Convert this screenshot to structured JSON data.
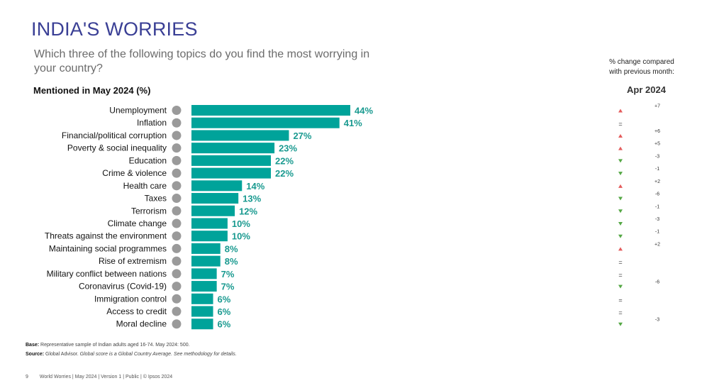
{
  "title": "INDIA'S WORRIES",
  "question": "Which three of the following topics do you find the most worrying in your country?",
  "subtitle": "Mentioned in May 2024 (%)",
  "change_header": {
    "line1": "% change compared",
    "line2": "with previous month:",
    "month": "Apr 2024"
  },
  "colors": {
    "bar": "#00a39a",
    "value_label": "#1a9a90",
    "up": "#e45c5c",
    "down": "#55a845",
    "title": "#3a3f95"
  },
  "chart_data": {
    "type": "bar",
    "orientation": "horizontal",
    "title": "Mentioned in May 2024 (%)",
    "categories": [
      "Unemployment",
      "Inflation",
      "Financial/political corruption",
      "Poverty & social inequality",
      "Education",
      "Crime & violence",
      "Health care",
      "Taxes",
      "Terrorism",
      "Climate change",
      "Threats against the environment",
      "Maintaining social programmes",
      "Rise of extremism",
      "Military conflict between nations",
      "Coronavirus (Covid-19)",
      "Immigration control",
      "Access to credit",
      "Moral decline"
    ],
    "values": [
      44,
      41,
      27,
      23,
      22,
      22,
      14,
      13,
      12,
      10,
      10,
      8,
      8,
      7,
      7,
      6,
      6,
      6
    ],
    "value_labels": [
      "44%",
      "41%",
      "27%",
      "23%",
      "22%",
      "22%",
      "14%",
      "13%",
      "12%",
      "10%",
      "10%",
      "8%",
      "8%",
      "7%",
      "7%",
      "6%",
      "6%",
      "6%"
    ],
    "icons": [
      "worker-icon",
      "price-rise-icon",
      "corruption-icon",
      "poverty-icon",
      "graduation-cap-icon",
      "gun-icon",
      "health-care-icon",
      "taxes-icon",
      "terrorism-icon",
      "climate-icon",
      "environment-icon",
      "social-programmes-icon",
      "extremism-icon",
      "globe-conflict-icon",
      "warning-icon",
      "immigration-icon",
      "credit-card-icon",
      "moral-decline-icon"
    ],
    "change_direction": [
      "up",
      "equal",
      "up",
      "up",
      "down",
      "down",
      "up",
      "down",
      "down",
      "down",
      "down",
      "up",
      "equal",
      "equal",
      "down",
      "equal",
      "equal",
      "down"
    ],
    "change_values": [
      "+7",
      "",
      "+6",
      "+5",
      "-3",
      "-1",
      "+2",
      "-6",
      "-1",
      "-3",
      "-1",
      "+2",
      "",
      "",
      "-6",
      "",
      "",
      "-3"
    ],
    "xlim": [
      0,
      50
    ]
  },
  "footnotes": {
    "base_label": "Base:",
    "base_text": "Representative sample of Indian adults aged 16-74. May 2024: 500.",
    "source_label": "Source:",
    "source_text": "Global Advisor.",
    "source_note": "Global score is a Global Country Average. See methodology for details."
  },
  "footer": {
    "page": "9",
    "text": "World Worries | May 2024 | Version 1 | Public | © Ipsos 2024"
  }
}
